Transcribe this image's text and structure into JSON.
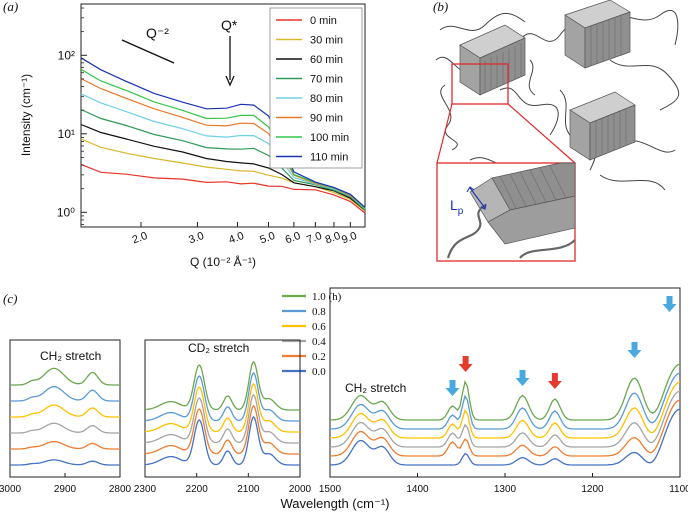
{
  "chart_data": [
    {
      "panel": "(a)",
      "type": "line",
      "xscale": "log",
      "yscale": "log",
      "xlim": [
        1.3,
        10.0
      ],
      "ylim": [
        0.65,
        450
      ],
      "xlabel": "Q (10⁻² Å⁻¹)",
      "ylabel": "Intensity (cm⁻¹)",
      "xticks": [
        "2.0",
        "3.0",
        "4.0",
        "5.0",
        "6.0",
        "7.0",
        "8.0",
        "9.0"
      ],
      "yticks": [
        "10⁰",
        "10¹",
        "10²"
      ],
      "annotations": {
        "power_law": "Q⁻²",
        "peak": "Q*"
      },
      "x": [
        1.3,
        1.5,
        1.8,
        2.2,
        2.7,
        3.2,
        3.7,
        4.1,
        4.5,
        5.0,
        5.5,
        6.0,
        7.0,
        8.0,
        9.0,
        10.0
      ],
      "series": [
        {
          "name": "0 min",
          "color": "#e8332a",
          "values": [
            4.0,
            3.3,
            3.0,
            2.8,
            2.6,
            2.45,
            2.4,
            2.35,
            2.3,
            2.2,
            2.1,
            2.0,
            1.9,
            1.7,
            1.35,
            1.0
          ]
        },
        {
          "name": "30 min",
          "color": "#d6b82a",
          "values": [
            8.5,
            6.8,
            5.6,
            4.9,
            4.2,
            3.8,
            3.5,
            3.4,
            3.3,
            3.0,
            2.7,
            2.4,
            2.1,
            1.8,
            1.45,
            1.05
          ]
        },
        {
          "name": "60 min",
          "color": "#111111",
          "values": [
            13,
            10.5,
            8.5,
            7.0,
            5.8,
            4.9,
            4.4,
            4.3,
            4.1,
            3.7,
            3.0,
            2.4,
            2.1,
            1.9,
            1.5,
            1.08
          ]
        },
        {
          "name": "70 min",
          "color": "#2f9a57",
          "values": [
            20,
            16,
            12.5,
            10,
            8.0,
            6.8,
            6.3,
            6.5,
            6.4,
            5.4,
            3.6,
            2.6,
            2.2,
            1.95,
            1.55,
            1.1
          ]
        },
        {
          "name": "80 min",
          "color": "#6fd0e6",
          "values": [
            32,
            25,
            19,
            14.5,
            11.5,
            9.5,
            9.0,
            9.6,
            9.4,
            7.6,
            4.5,
            2.8,
            2.25,
            2.0,
            1.6,
            1.12
          ]
        },
        {
          "name": "90 min",
          "color": "#e8782a",
          "values": [
            50,
            38,
            28,
            21,
            16,
            13,
            12.5,
            13.8,
            13.4,
            10.2,
            5.4,
            3.0,
            2.3,
            2.05,
            1.62,
            1.14
          ]
        },
        {
          "name": "100 min",
          "color": "#34c54c",
          "values": [
            65,
            48,
            35,
            26,
            19.5,
            16,
            15.5,
            17.5,
            16.8,
            12.5,
            6.2,
            3.1,
            2.35,
            2.08,
            1.65,
            1.15
          ]
        },
        {
          "name": "110 min",
          "color": "#1a33b4",
          "values": [
            92,
            66,
            46,
            33,
            25,
            21,
            21,
            24,
            23,
            17,
            7.4,
            3.3,
            2.4,
            2.1,
            1.68,
            1.17
          ]
        }
      ]
    },
    {
      "panel": "(c)",
      "type": "line",
      "xlabel": "Wavelength (cm⁻¹)",
      "legend_title_suffix": "(h)",
      "legend": [
        {
          "name": "1.0 (h)",
          "color": "#6aa84f"
        },
        {
          "name": "0.8",
          "color": "#5b9bd5"
        },
        {
          "name": "0.6",
          "color": "#ffc000"
        },
        {
          "name": "0.4",
          "color": "#a5a5a5"
        },
        {
          "name": "0.2",
          "color": "#ed7d31"
        },
        {
          "name": "0.0",
          "color": "#4472c4"
        }
      ],
      "subpanels": [
        {
          "label": "CH₂ stretch",
          "xlim": [
            3000,
            2800
          ],
          "xticks": [
            "3000",
            "2900",
            "2800"
          ]
        },
        {
          "label": "CD₂ stretch",
          "xlim": [
            2300,
            2000
          ],
          "xticks": [
            "2300",
            "2200",
            "2100",
            "2000"
          ]
        },
        {
          "label": "CH₂ stretch",
          "xlim": [
            1500,
            1100
          ],
          "xticks": [
            "1500",
            "1400",
            "1300",
            "1200",
            "1100"
          ],
          "markers": [
            {
              "x": 1360,
              "color": "#4aa8e0"
            },
            {
              "x": 1345,
              "color": "#e53b2c"
            },
            {
              "x": 1280,
              "color": "#4aa8e0"
            },
            {
              "x": 1243,
              "color": "#e53b2c"
            },
            {
              "x": 1152,
              "color": "#4aa8e0"
            },
            {
              "x": 1112,
              "color": "#4aa8e0"
            }
          ]
        }
      ]
    }
  ],
  "panel_b": {
    "label": "(b)",
    "lp_label": "L",
    "lp_sub": "p"
  }
}
